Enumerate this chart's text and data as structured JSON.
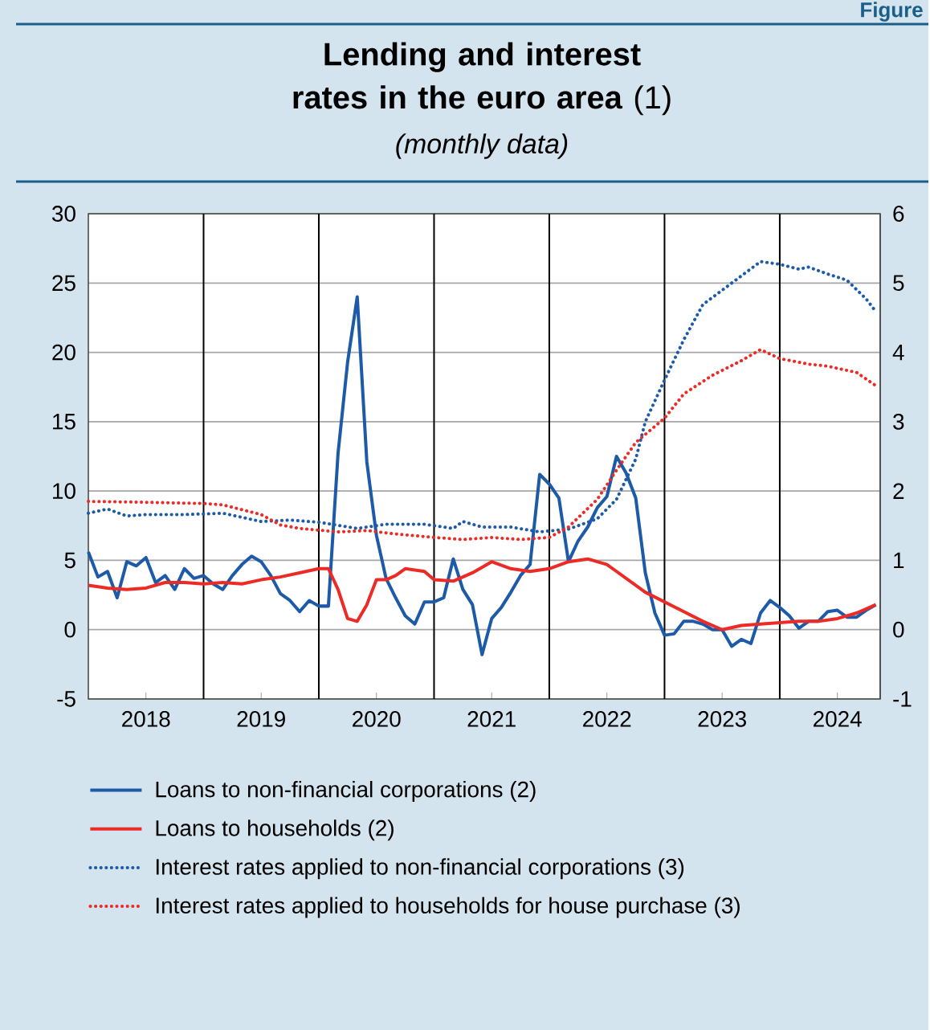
{
  "chart_data": {
    "type": "line",
    "title": "**Lending and interest rates in the euro area** (1)",
    "subtitle": "(monthly data)",
    "annotations": [
      "Figure"
    ],
    "xlim": [
      "2018-01",
      "2024-11-15"
    ],
    "xticks": [
      {
        "value": "2018-07",
        "label": "2018"
      },
      {
        "value": "2019-07",
        "label": "2019"
      },
      {
        "value": "2020-07",
        "label": "2020"
      },
      {
        "value": "2021-07",
        "label": "2021"
      },
      {
        "value": "2022-07",
        "label": "2022"
      },
      {
        "value": "2023-07",
        "label": "2023"
      },
      {
        "value": "2024-07",
        "label": "2024"
      }
    ],
    "ylim": [
      -5,
      30
    ],
    "yticks": [
      -5,
      0,
      5,
      10,
      15,
      20,
      25,
      30
    ],
    "y2lim": [
      -1,
      6
    ],
    "y2ticks": [
      -1,
      0,
      1,
      2,
      3,
      4,
      5,
      6
    ],
    "grid": "y",
    "legend": "bottom",
    "marker": "none",
    "ref_lines": [
      {
        "axis": "x",
        "value": "2019-01",
        "color": "#000000"
      },
      {
        "axis": "x",
        "value": "2020-01",
        "color": "#000000"
      },
      {
        "axis": "x",
        "value": "2021-01",
        "color": "#000000"
      },
      {
        "axis": "x",
        "value": "2022-01",
        "color": "#000000"
      },
      {
        "axis": "x",
        "value": "2023-01",
        "color": "#000000"
      },
      {
        "axis": "x",
        "value": "2024-01",
        "color": "#000000"
      }
    ],
    "series": [
      {
        "name": "Loans to non-financial corporations (2)",
        "color": "#1d5aa8",
        "line_style": "solid",
        "x": [
          "2018-01",
          "2018-02",
          "2018-03",
          "2018-04",
          "2018-05",
          "2018-06",
          "2018-07",
          "2018-08",
          "2018-09",
          "2018-10",
          "2018-11",
          "2018-12",
          "2019-01",
          "2019-02",
          "2019-03",
          "2019-04",
          "2019-05",
          "2019-06",
          "2019-07",
          "2019-08",
          "2019-09",
          "2019-10",
          "2019-11",
          "2019-12",
          "2020-01",
          "2020-02",
          "2020-03",
          "2020-04",
          "2020-05",
          "2020-06",
          "2020-07",
          "2020-08",
          "2020-09",
          "2020-10",
          "2020-11",
          "2020-12",
          "2021-01",
          "2021-02",
          "2021-03",
          "2021-04",
          "2021-05",
          "2021-06",
          "2021-07",
          "2021-08",
          "2021-09",
          "2021-10",
          "2021-11",
          "2021-12",
          "2022-01",
          "2022-02",
          "2022-03",
          "2022-04",
          "2022-05",
          "2022-06",
          "2022-07",
          "2022-08",
          "2022-09",
          "2022-10",
          "2022-11",
          "2022-12",
          "2023-01",
          "2023-02",
          "2023-03",
          "2023-04",
          "2023-05",
          "2023-06",
          "2023-07",
          "2023-08",
          "2023-09",
          "2023-10",
          "2023-11",
          "2023-12",
          "2024-01",
          "2024-02",
          "2024-03",
          "2024-04",
          "2024-05",
          "2024-06",
          "2024-07",
          "2024-08",
          "2024-09",
          "2024-10",
          "2024-11"
        ],
        "values": [
          5.6,
          3.8,
          4.2,
          2.3,
          4.9,
          4.6,
          5.2,
          3.4,
          3.9,
          2.9,
          4.4,
          3.7,
          3.9,
          3.3,
          2.9,
          3.9,
          4.7,
          5.3,
          4.9,
          3.9,
          2.6,
          2.1,
          1.3,
          2.1,
          1.7,
          1.7,
          12.7,
          19.3,
          24.0,
          12.1,
          6.8,
          3.7,
          2.3,
          1.0,
          0.4,
          2.0,
          2.0,
          2.3,
          5.1,
          2.9,
          1.8,
          -1.8,
          0.8,
          1.6,
          2.7,
          3.9,
          4.7,
          11.2,
          10.5,
          9.5,
          4.9,
          6.4,
          7.4,
          8.8,
          9.6,
          12.5,
          11.3,
          9.5,
          4.1,
          1.2,
          -0.4,
          -0.3,
          0.6,
          0.6,
          0.4,
          0.0,
          0.0,
          -1.2,
          -0.7,
          -1.0,
          1.2,
          2.1,
          1.6,
          1.0,
          0.1,
          0.6,
          0.6,
          1.3,
          1.4,
          0.9,
          0.9,
          1.4,
          1.8
        ]
      },
      {
        "name": "Loans to households (2)",
        "color": "#ec2a26",
        "line_style": "solid",
        "x": [
          "2018-01",
          "2018-03",
          "2018-05",
          "2018-07",
          "2018-09",
          "2018-11",
          "2019-01",
          "2019-03",
          "2019-05",
          "2019-07",
          "2019-09",
          "2019-11",
          "2020-01",
          "2020-02",
          "2020-03",
          "2020-04",
          "2020-05",
          "2020-06",
          "2020-07",
          "2020-08",
          "2020-09",
          "2020-10",
          "2020-12",
          "2021-01",
          "2021-03",
          "2021-05",
          "2021-07",
          "2021-09",
          "2021-11",
          "2022-01",
          "2022-03",
          "2022-05",
          "2022-07",
          "2022-09",
          "2022-11",
          "2023-01",
          "2023-03",
          "2023-05",
          "2023-07",
          "2023-09",
          "2023-11",
          "2024-01",
          "2024-03",
          "2024-05",
          "2024-07",
          "2024-09",
          "2024-11"
        ],
        "values": [
          3.2,
          3.0,
          2.9,
          3.0,
          3.4,
          3.4,
          3.3,
          3.4,
          3.3,
          3.6,
          3.8,
          4.1,
          4.4,
          4.4,
          2.9,
          0.8,
          0.6,
          1.8,
          3.6,
          3.6,
          3.9,
          4.4,
          4.2,
          3.6,
          3.5,
          4.1,
          4.9,
          4.4,
          4.2,
          4.4,
          4.9,
          5.1,
          4.7,
          3.7,
          2.7,
          2.0,
          1.3,
          0.6,
          0.0,
          0.3,
          0.4,
          0.5,
          0.6,
          0.6,
          0.8,
          1.2,
          1.8
        ]
      },
      {
        "name": "Interest rates applied to non-financial corporations (3)",
        "color": "#1d5aa8",
        "line_style": "dotted",
        "axis": "y2",
        "x": [
          "2018-01",
          "2018-03",
          "2018-05",
          "2018-07",
          "2018-11",
          "2019-03",
          "2019-07",
          "2019-10",
          "2020-01",
          "2020-05",
          "2020-08",
          "2020-12",
          "2021-03",
          "2021-04",
          "2021-06",
          "2021-09",
          "2021-12",
          "2022-03",
          "2022-06",
          "2022-08",
          "2022-10",
          "2022-11",
          "2023-01",
          "2023-03",
          "2023-05",
          "2023-08",
          "2023-11",
          "2024-01",
          "2024-03",
          "2024-04",
          "2024-06",
          "2024-08",
          "2024-10",
          "2024-11"
        ],
        "values": [
          1.68,
          1.74,
          1.64,
          1.66,
          1.66,
          1.68,
          1.56,
          1.58,
          1.55,
          1.46,
          1.52,
          1.52,
          1.46,
          1.56,
          1.48,
          1.48,
          1.41,
          1.45,
          1.6,
          1.88,
          2.46,
          3.0,
          3.6,
          4.18,
          4.69,
          5.0,
          5.31,
          5.27,
          5.2,
          5.23,
          5.13,
          5.04,
          4.77,
          4.59
        ]
      },
      {
        "name": "Interest rates applied to households for house purchase (3)",
        "color": "#ec2a26",
        "line_style": "dotted",
        "axis": "y2",
        "x": [
          "2018-01",
          "2018-06",
          "2019-01",
          "2019-03",
          "2019-07",
          "2019-09",
          "2019-11",
          "2020-03",
          "2020-06",
          "2020-09",
          "2021-01",
          "2021-04",
          "2021-07",
          "2021-10",
          "2022-01",
          "2022-03",
          "2022-06",
          "2022-08",
          "2022-10",
          "2023-01",
          "2023-03",
          "2023-06",
          "2023-09",
          "2023-11",
          "2024-01",
          "2024-04",
          "2024-06",
          "2024-09",
          "2024-11"
        ],
        "values": [
          1.85,
          1.84,
          1.82,
          1.8,
          1.66,
          1.51,
          1.46,
          1.41,
          1.43,
          1.38,
          1.33,
          1.3,
          1.33,
          1.3,
          1.33,
          1.48,
          1.88,
          2.3,
          2.7,
          3.05,
          3.4,
          3.67,
          3.88,
          4.04,
          3.91,
          3.83,
          3.8,
          3.71,
          3.52
        ]
      }
    ]
  }
}
